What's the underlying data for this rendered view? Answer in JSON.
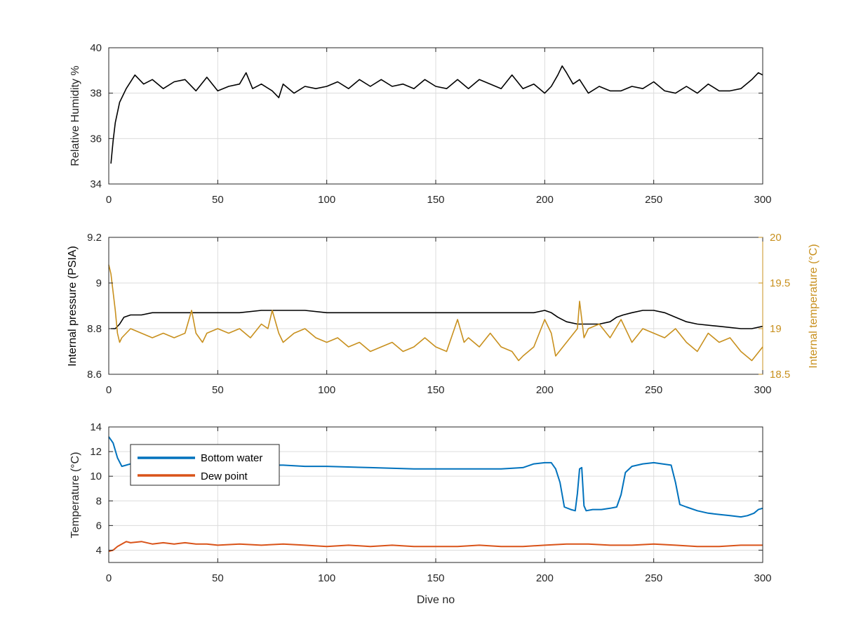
{
  "chart_data": [
    {
      "type": "line",
      "ylabel": "Relative Humidity %",
      "xlabel": "",
      "xlim": [
        0,
        300
      ],
      "ylim": [
        34,
        40
      ],
      "xticks": [
        "0",
        "50",
        "100",
        "150",
        "200",
        "250",
        "300"
      ],
      "yticks": [
        "34",
        "36",
        "38",
        "40"
      ],
      "grid": true,
      "series": [
        {
          "color": "#000000",
          "x": [
            1,
            2,
            3,
            5,
            8,
            12,
            16,
            20,
            25,
            30,
            35,
            40,
            45,
            50,
            55,
            60,
            63,
            66,
            70,
            75,
            78,
            80,
            85,
            90,
            95,
            100,
            105,
            110,
            115,
            120,
            125,
            130,
            135,
            140,
            145,
            150,
            155,
            160,
            165,
            170,
            175,
            180,
            185,
            190,
            195,
            200,
            203,
            206,
            208,
            210,
            213,
            216,
            220,
            225,
            230,
            235,
            240,
            245,
            250,
            255,
            260,
            265,
            270,
            275,
            280,
            285,
            290,
            295,
            298,
            300
          ],
          "values": [
            34.9,
            35.9,
            36.7,
            37.6,
            38.2,
            38.8,
            38.4,
            38.6,
            38.2,
            38.5,
            38.6,
            38.1,
            38.7,
            38.1,
            38.3,
            38.4,
            38.9,
            38.2,
            38.4,
            38.1,
            37.8,
            38.4,
            38.0,
            38.3,
            38.2,
            38.3,
            38.5,
            38.2,
            38.6,
            38.3,
            38.6,
            38.3,
            38.4,
            38.2,
            38.6,
            38.3,
            38.2,
            38.6,
            38.2,
            38.6,
            38.4,
            38.2,
            38.8,
            38.2,
            38.4,
            38.0,
            38.3,
            38.8,
            39.2,
            38.9,
            38.4,
            38.6,
            38.0,
            38.3,
            38.1,
            38.1,
            38.3,
            38.2,
            38.5,
            38.1,
            38.0,
            38.3,
            38.0,
            38.4,
            38.1,
            38.1,
            38.2,
            38.6,
            38.9,
            38.8
          ]
        }
      ]
    },
    {
      "type": "line",
      "ylabel": "Internal pressure (PSIA)",
      "y2label": "Internal temperature (°C)",
      "xlabel": "",
      "xlim": [
        0,
        300
      ],
      "ylim": [
        8.6,
        9.2
      ],
      "y2lim": [
        18.5,
        20
      ],
      "xticks": [
        "0",
        "50",
        "100",
        "150",
        "200",
        "250",
        "300"
      ],
      "yticks": [
        "8.6",
        "8.8",
        "9",
        "9.2"
      ],
      "y2ticks": [
        "18.5",
        "19",
        "19.5",
        "20"
      ],
      "grid": true,
      "series": [
        {
          "axis": "left",
          "color": "#000000",
          "x": [
            1,
            3,
            5,
            7,
            10,
            15,
            20,
            25,
            30,
            40,
            50,
            60,
            70,
            75,
            80,
            90,
            100,
            110,
            120,
            130,
            140,
            150,
            160,
            170,
            180,
            190,
            195,
            200,
            203,
            206,
            210,
            215,
            220,
            225,
            230,
            233,
            236,
            240,
            245,
            250,
            255,
            260,
            265,
            270,
            280,
            290,
            295,
            300
          ],
          "values": [
            8.8,
            8.8,
            8.82,
            8.85,
            8.86,
            8.86,
            8.87,
            8.87,
            8.87,
            8.87,
            8.87,
            8.87,
            8.88,
            8.88,
            8.88,
            8.88,
            8.87,
            8.87,
            8.87,
            8.87,
            8.87,
            8.87,
            8.87,
            8.87,
            8.87,
            8.87,
            8.87,
            8.88,
            8.87,
            8.85,
            8.83,
            8.82,
            8.82,
            8.82,
            8.83,
            8.85,
            8.86,
            8.87,
            8.88,
            8.88,
            8.87,
            8.85,
            8.83,
            8.82,
            8.81,
            8.8,
            8.8,
            8.81
          ]
        },
        {
          "axis": "right",
          "color": "#c8901e",
          "x": [
            0,
            1,
            2,
            3,
            4,
            5,
            6,
            10,
            15,
            20,
            25,
            30,
            35,
            38,
            40,
            43,
            45,
            50,
            55,
            60,
            65,
            70,
            73,
            75,
            78,
            80,
            85,
            90,
            95,
            100,
            105,
            110,
            115,
            120,
            125,
            130,
            135,
            140,
            145,
            150,
            155,
            160,
            163,
            165,
            170,
            175,
            180,
            185,
            188,
            190,
            195,
            200,
            203,
            205,
            210,
            215,
            216,
            218,
            220,
            225,
            230,
            235,
            240,
            245,
            250,
            255,
            260,
            265,
            270,
            275,
            280,
            285,
            290,
            295,
            300
          ],
          "values": [
            19.7,
            19.6,
            19.4,
            19.2,
            18.95,
            18.85,
            18.9,
            19.0,
            18.95,
            18.9,
            18.95,
            18.9,
            18.95,
            19.2,
            18.95,
            18.85,
            18.95,
            19.0,
            18.95,
            19.0,
            18.9,
            19.05,
            19.0,
            19.2,
            18.95,
            18.85,
            18.95,
            19.0,
            18.9,
            18.85,
            18.9,
            18.8,
            18.85,
            18.75,
            18.8,
            18.85,
            18.75,
            18.8,
            18.9,
            18.8,
            18.75,
            19.1,
            18.85,
            18.9,
            18.8,
            18.95,
            18.8,
            18.75,
            18.65,
            18.7,
            18.8,
            19.1,
            18.95,
            18.7,
            18.85,
            19.0,
            19.3,
            18.9,
            19.0,
            19.05,
            18.9,
            19.1,
            18.85,
            19.0,
            18.95,
            18.9,
            19.0,
            18.85,
            18.75,
            18.95,
            18.85,
            18.9,
            18.75,
            18.65,
            18.8
          ]
        }
      ]
    },
    {
      "type": "line",
      "ylabel": "Temperature (°C)",
      "xlabel": "Dive no",
      "xlim": [
        0,
        300
      ],
      "ylim": [
        3,
        14
      ],
      "xticks": [
        "0",
        "50",
        "100",
        "150",
        "200",
        "250",
        "300"
      ],
      "yticks": [
        "4",
        "6",
        "8",
        "10",
        "12",
        "14"
      ],
      "grid": true,
      "legend": "top-left",
      "series": [
        {
          "name": "Bottom water",
          "color": "#0072bd",
          "x": [
            0,
            2,
            4,
            6,
            8,
            10,
            15,
            20,
            30,
            40,
            50,
            60,
            70,
            80,
            90,
            100,
            120,
            140,
            160,
            180,
            190,
            195,
            200,
            203,
            205,
            207,
            209,
            212,
            214,
            215,
            216,
            217,
            218,
            219,
            222,
            226,
            230,
            233,
            235,
            237,
            240,
            245,
            250,
            254,
            258,
            260,
            262,
            265,
            270,
            275,
            280,
            285,
            290,
            293,
            296,
            298,
            300
          ],
          "values": [
            13.2,
            12.7,
            11.5,
            10.8,
            10.9,
            11.0,
            11.1,
            11.1,
            11.1,
            11.0,
            11.0,
            11.0,
            10.9,
            10.9,
            10.8,
            10.8,
            10.7,
            10.6,
            10.6,
            10.6,
            10.7,
            11.0,
            11.1,
            11.1,
            10.6,
            9.5,
            7.5,
            7.3,
            7.2,
            8.6,
            10.6,
            10.7,
            7.6,
            7.2,
            7.3,
            7.3,
            7.4,
            7.5,
            8.5,
            10.3,
            10.8,
            11.0,
            11.1,
            11.0,
            10.9,
            9.5,
            7.7,
            7.5,
            7.2,
            7.0,
            6.9,
            6.8,
            6.7,
            6.8,
            7.0,
            7.3,
            7.4
          ]
        },
        {
          "name": "Dew point",
          "color": "#d95319",
          "x": [
            0,
            2,
            4,
            6,
            8,
            10,
            15,
            20,
            25,
            30,
            35,
            40,
            45,
            50,
            60,
            70,
            80,
            90,
            100,
            110,
            120,
            130,
            140,
            150,
            160,
            170,
            180,
            190,
            200,
            210,
            220,
            230,
            240,
            250,
            260,
            270,
            280,
            290,
            300
          ],
          "values": [
            3.9,
            4.0,
            4.3,
            4.5,
            4.7,
            4.6,
            4.7,
            4.5,
            4.6,
            4.5,
            4.6,
            4.5,
            4.5,
            4.4,
            4.5,
            4.4,
            4.5,
            4.4,
            4.3,
            4.4,
            4.3,
            4.4,
            4.3,
            4.3,
            4.3,
            4.4,
            4.3,
            4.3,
            4.4,
            4.5,
            4.5,
            4.4,
            4.4,
            4.5,
            4.4,
            4.3,
            4.3,
            4.4,
            4.4
          ]
        }
      ]
    }
  ]
}
